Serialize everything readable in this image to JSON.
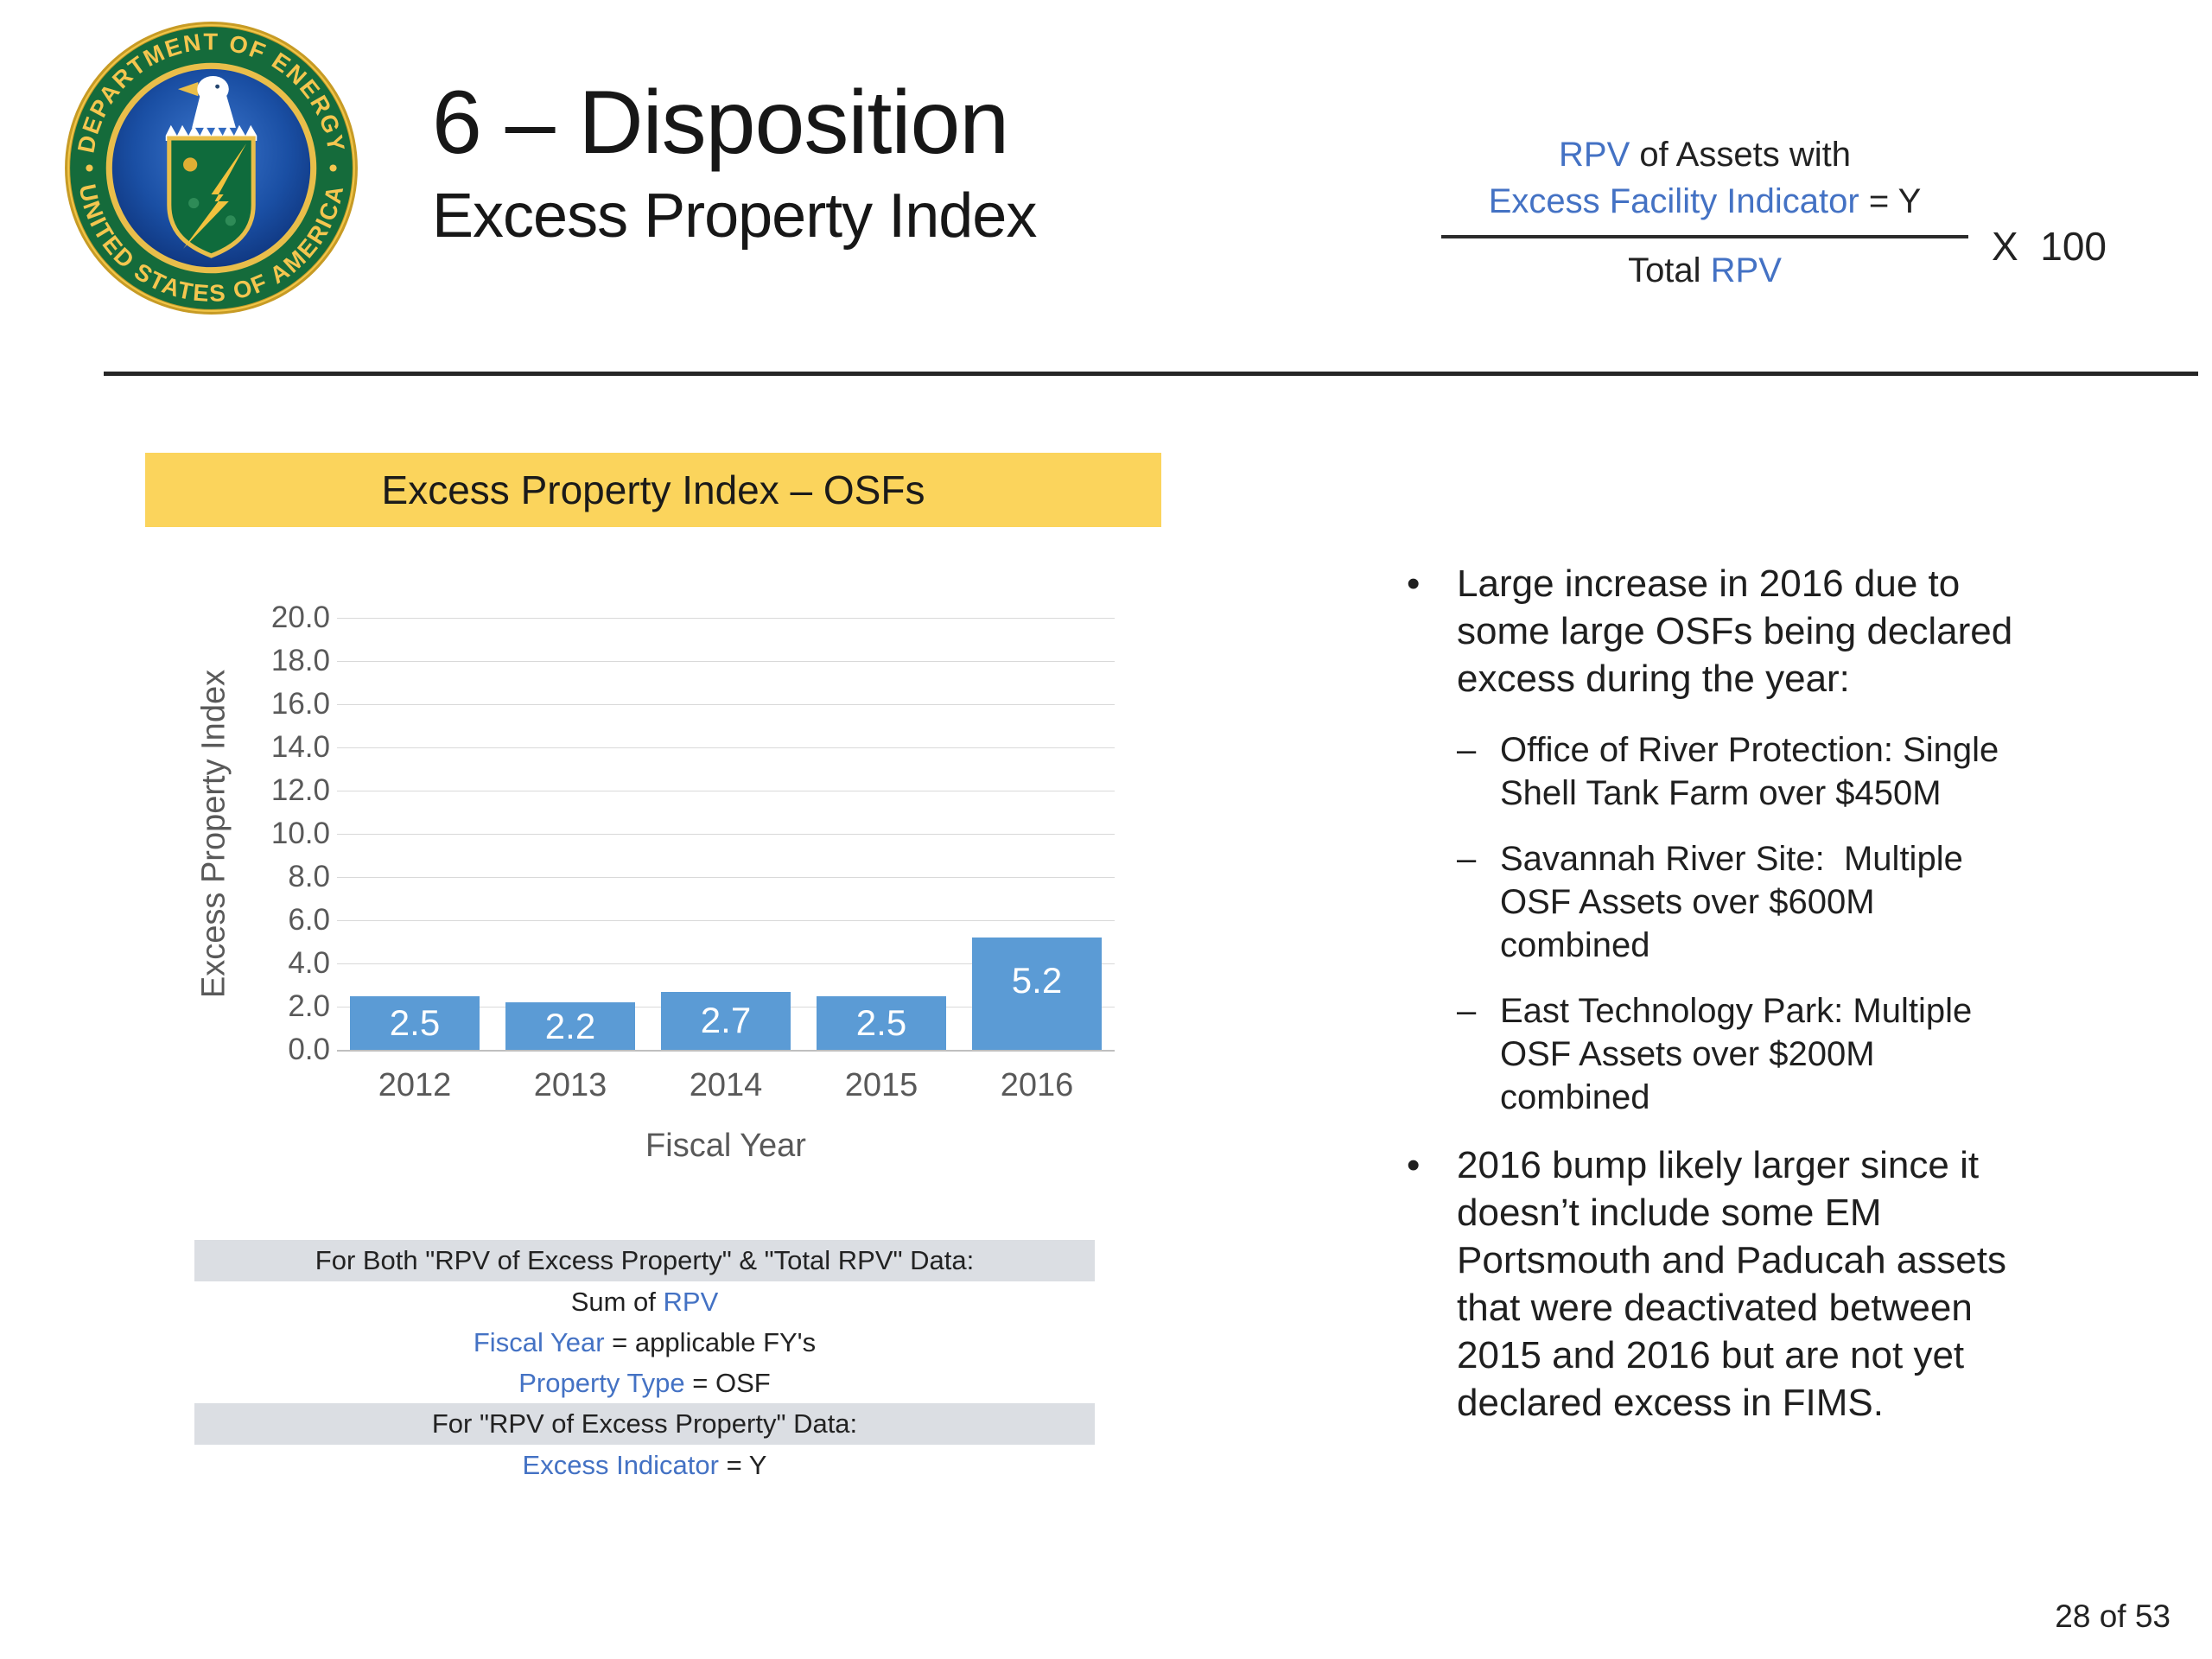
{
  "colors": {
    "accent_blue": "#4472C4",
    "bar_blue": "#5B9BD5",
    "banner_yellow": "#FBD45C",
    "band_gray": "#DBDEE3"
  },
  "header": {
    "title": "6 – Disposition",
    "subtitle": "Excess Property Index"
  },
  "seal": {
    "ring_top": "DEPARTMENT OF ENERGY",
    "ring_bottom": "UNITED STATES OF AMERICA"
  },
  "formula": {
    "num1_rpv": "RPV",
    "num1_rest": " of Assets with",
    "num2_field": "Excess Facility Indicator",
    "num2_rest": " = Y",
    "den_prefix": "Total ",
    "den_rpv": "RPV",
    "multiplier": "X  100"
  },
  "chart_header": "Excess Property Index – OSFs",
  "chart_data": {
    "type": "bar",
    "title": "Excess Property Index – OSFs",
    "categories": [
      "2012",
      "2013",
      "2014",
      "2015",
      "2016"
    ],
    "values": [
      2.5,
      2.2,
      2.7,
      2.5,
      5.2
    ],
    "xlabel": "Fiscal Year",
    "ylabel": "Excess Property Index",
    "ylim": [
      0,
      20
    ],
    "ytick_step": 2,
    "grid": true,
    "legend": false,
    "bar_color": "#5B9BD5",
    "value_label_color": "#FFFFFF"
  },
  "notes": {
    "band1": "For Both \"RPV of Excess Property\" & \"Total RPV\" Data:",
    "line1_prefix": "Sum of ",
    "line1_field": "RPV",
    "line2_field": "Fiscal Year",
    "line2_rest": " = applicable FY's",
    "line3_field": "Property Type",
    "line3_rest": " = OSF",
    "band2": "For \"RPV of Excess Property\" Data:",
    "line4_field": "Excess Indicator",
    "line4_rest": " = Y"
  },
  "bullets": {
    "marker": "•",
    "sub_marker": "–",
    "b1": "Large increase in 2016 due to some large OSFs being declared excess during the year:",
    "b1_subs": [
      "Office of River Protection: Single Shell Tank Farm over $450M",
      "Savannah River Site:  Multiple OSF Assets over $600M combined",
      "East Technology Park: Multiple OSF Assets over $200M combined"
    ],
    "b2": "2016 bump likely larger since it doesn’t include some EM Portsmouth and Paducah assets that were deactivated between 2015 and 2016 but are not yet declared excess in FIMS."
  },
  "footer": {
    "page_label": "28 of 53"
  }
}
